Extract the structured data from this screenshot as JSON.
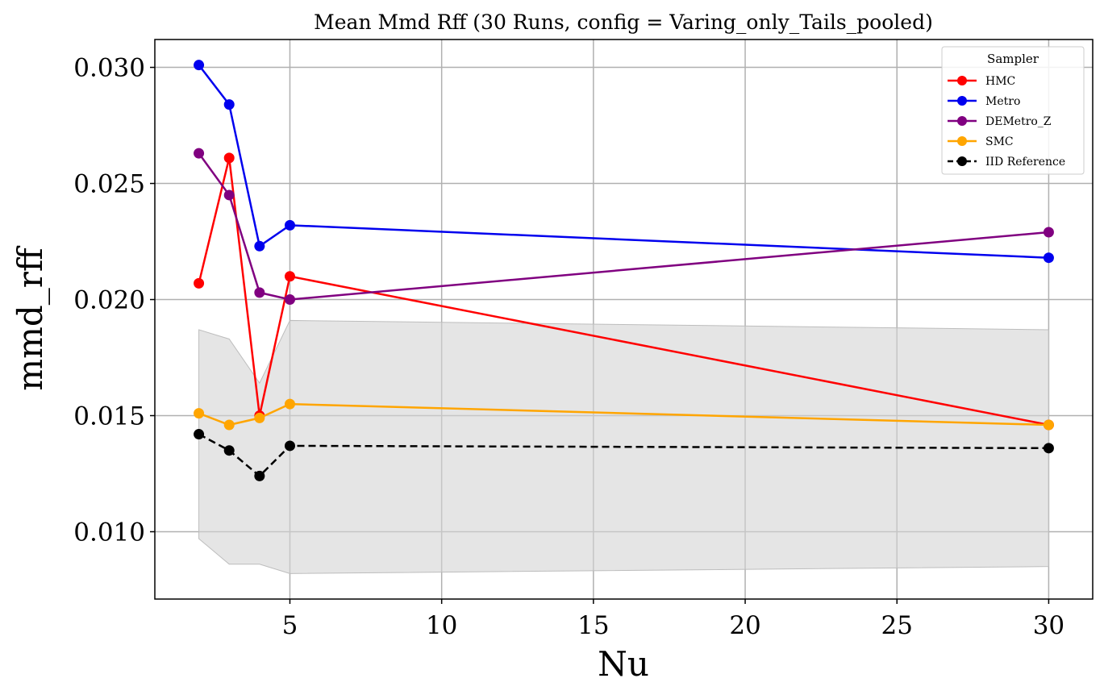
{
  "chart_data": {
    "type": "line",
    "title": "Mean Mmd Rff (30 Runs, config = Varing_only_Tails_pooled)",
    "xlabel": "Nu",
    "ylabel": "mmd_rff",
    "xlim": [
      0.55,
      31.45
    ],
    "ylim": [
      0.0071,
      0.0312
    ],
    "xticks": [
      5,
      10,
      15,
      20,
      25,
      30
    ],
    "yticks": [
      0.01,
      0.015,
      0.02,
      0.025,
      0.03
    ],
    "ytick_labels": [
      "0.010",
      "0.015",
      "0.020",
      "0.025",
      "0.030"
    ],
    "grid": true,
    "legend": {
      "title": "Sampler",
      "placement": "top-right"
    },
    "x": [
      2,
      3,
      4,
      5,
      30
    ],
    "series": [
      {
        "name": "HMC",
        "color": "#ff0000",
        "dashed": false,
        "values": [
          0.0207,
          0.0261,
          0.015,
          0.021,
          0.0146
        ]
      },
      {
        "name": "Metro",
        "color": "#0000ee",
        "dashed": false,
        "values": [
          0.0301,
          0.0284,
          0.0223,
          0.0232,
          0.0218
        ]
      },
      {
        "name": "DEMetro_Z",
        "color": "#800080",
        "dashed": false,
        "values": [
          0.0263,
          0.0245,
          0.0203,
          0.02,
          0.0229
        ]
      },
      {
        "name": "SMC",
        "color": "#ffa500",
        "dashed": false,
        "values": [
          0.0151,
          0.0146,
          0.0149,
          0.0155,
          0.0146
        ]
      },
      {
        "name": "IID Reference",
        "color": "#000000",
        "dashed": true,
        "values": [
          0.0142,
          0.0135,
          0.0124,
          0.0137,
          0.0136
        ]
      }
    ],
    "band": {
      "color": "#d3d3d3",
      "upper": [
        0.0187,
        0.0183,
        0.0164,
        0.0191,
        0.0187
      ],
      "lower": [
        0.0097,
        0.0086,
        0.0086,
        0.0082,
        0.0085
      ]
    }
  }
}
